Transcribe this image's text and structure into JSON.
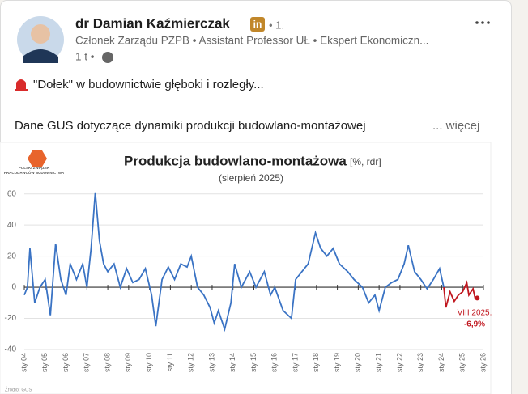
{
  "post": {
    "author": "dr Damian Kaźmierczak",
    "badge": "in",
    "degree": "• 1.",
    "headline": "Członek Zarządu PZPB • Assistant Professor UŁ • Ekspert Ekonomiczn...",
    "time": "1 t •",
    "line1": "\"Dołek\" w budownictwie głęboki i rozległy...",
    "line2": "Dane GUS dotyczące dynamiki produkcji budowlano-montażowej",
    "more": "... więcej"
  },
  "chart_data": {
    "type": "line",
    "title": "Produkcja budowlano-montażowa",
    "title_unit": "[%, rdr]",
    "subtitle": "(sierpień 2025)",
    "logo_text": [
      "POLSKI ZWIĄZEK",
      "PRACODAWCÓW BUDOWNICTWA"
    ],
    "source": "Źródło: GUS",
    "annotations": [
      "VIII 2025:",
      "-6,9%"
    ],
    "xlim": [
      2004,
      2026
    ],
    "xticks": [
      {
        "value": 2004,
        "label": "sty 04"
      },
      {
        "value": 2005,
        "label": "sty 05"
      },
      {
        "value": 2006,
        "label": "sty 06"
      },
      {
        "value": 2007,
        "label": "sty 07"
      },
      {
        "value": 2008,
        "label": "sty 08"
      },
      {
        "value": 2009,
        "label": "sty 09"
      },
      {
        "value": 2010,
        "label": "sty 10"
      },
      {
        "value": 2011,
        "label": "sty 11"
      },
      {
        "value": 2012,
        "label": "sty 12"
      },
      {
        "value": 2013,
        "label": "sty 13"
      },
      {
        "value": 2014,
        "label": "sty 14"
      },
      {
        "value": 2015,
        "label": "sty 15"
      },
      {
        "value": 2016,
        "label": "sty 16"
      },
      {
        "value": 2017,
        "label": "sty 17"
      },
      {
        "value": 2018,
        "label": "sty 18"
      },
      {
        "value": 2019,
        "label": "sty 19"
      },
      {
        "value": 2020,
        "label": "sty 20"
      },
      {
        "value": 2021,
        "label": "sty 21"
      },
      {
        "value": 2022,
        "label": "sty 22"
      },
      {
        "value": 2023,
        "label": "sty 23"
      },
      {
        "value": 2024,
        "label": "sty 24"
      },
      {
        "value": 2025,
        "label": "sty 25"
      },
      {
        "value": 2026,
        "label": "sty 26"
      }
    ],
    "ylim": [
      -40,
      64
    ],
    "yticks": [
      -40,
      -20,
      0,
      20,
      40,
      60
    ],
    "grid": true,
    "series": [
      {
        "color": "#3a73c4",
        "x": [
          2004.0,
          2004.15,
          2004.27,
          2004.5,
          2004.75,
          2005.0,
          2005.25,
          2005.5,
          2005.75,
          2006.0,
          2006.2,
          2006.5,
          2006.8,
          2007.0,
          2007.2,
          2007.4,
          2007.6,
          2007.8,
          2008.0,
          2008.3,
          2008.6,
          2008.9,
          2009.2,
          2009.5,
          2009.8,
          2010.1,
          2010.3,
          2010.6,
          2010.9,
          2011.2,
          2011.5,
          2011.8,
          2012.0,
          2012.3,
          2012.6,
          2012.9,
          2013.1,
          2013.3,
          2013.6,
          2013.9,
          2014.08,
          2014.4,
          2014.8,
          2015.1,
          2015.5,
          2015.8,
          2016.0,
          2016.4,
          2016.8,
          2017.0,
          2017.3,
          2017.6,
          2017.95,
          2018.2,
          2018.5,
          2018.8,
          2019.1,
          2019.5,
          2019.8,
          2020.2,
          2020.5,
          2020.8,
          2021.0,
          2021.3,
          2021.6,
          2021.9,
          2022.2,
          2022.4,
          2022.7,
          2023.0,
          2023.3,
          2023.6,
          2023.9,
          2024.1
        ],
        "values": [
          -5,
          0,
          25,
          -10,
          0,
          5,
          -18,
          28,
          5,
          -5,
          15,
          5,
          15,
          0,
          25,
          61,
          30,
          15,
          10,
          15,
          0,
          12,
          3,
          5,
          12,
          -5,
          -25,
          5,
          13,
          5,
          15,
          13,
          20,
          0,
          -5,
          -13,
          -23,
          -15,
          -27,
          -10,
          15,
          0,
          10,
          0,
          10,
          -5,
          0,
          -15,
          -20,
          5,
          10,
          15,
          35,
          25,
          20,
          25,
          15,
          10,
          5,
          0,
          -10,
          -5,
          -15,
          0,
          3,
          5,
          15,
          27,
          10,
          5,
          -1,
          5,
          12,
          0
        ]
      },
      {
        "color": "#c0161e",
        "x": [
          2024.1,
          2024.2,
          2024.4,
          2024.6,
          2024.8,
          2025.0,
          2025.2,
          2025.3,
          2025.5,
          2025.6,
          2025.7
        ],
        "values": [
          0,
          -13,
          -3,
          -9,
          -5,
          -3,
          3,
          -5,
          -1,
          -7,
          -6.9
        ]
      }
    ]
  }
}
